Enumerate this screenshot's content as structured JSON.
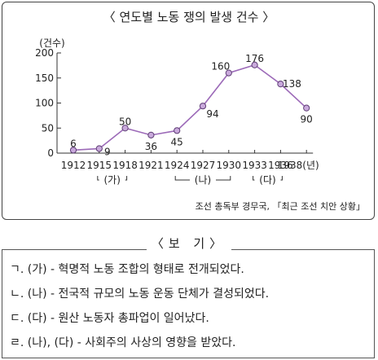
{
  "chart_data": {
    "type": "line",
    "title": "〈 연도별 노동 쟁의 발생 건수 〉",
    "ylabel": "(건수)",
    "x": [
      "1912",
      "1915",
      "1918",
      "1921",
      "1924",
      "1927",
      "1930",
      "1933",
      "1936",
      "1938(년)"
    ],
    "values": [
      6,
      9,
      50,
      36,
      45,
      94,
      160,
      176,
      138,
      90
    ],
    "yticks": [
      "0",
      "50",
      "100",
      "150",
      "200"
    ],
    "ylim": [
      0,
      200
    ],
    "grid": false,
    "line_color": "#9c6ab8",
    "period_markers": [
      "(가)",
      "(나)",
      "(다)"
    ],
    "source": "조선 총독부 경무국, 「최근 조선 치안 상황」"
  },
  "bogi": {
    "title": "〈보 기〉",
    "items": [
      "ㄱ. (가) - 혁명적 노동 조합의 형태로 전개되었다.",
      "ㄴ. (나) - 전국적 규모의 노동 운동 단체가 결성되었다.",
      "ㄷ. (다) - 원산 노동자 총파업이 일어났다.",
      "ㄹ. (나), (다) - 사회주의 사상의 영향을 받았다."
    ]
  }
}
